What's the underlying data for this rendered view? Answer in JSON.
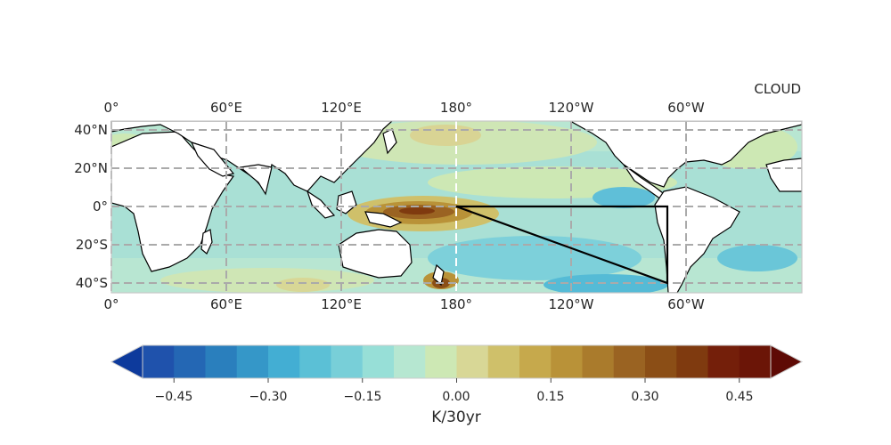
{
  "map": {
    "title": "CLOUD",
    "lon_labels_top": [
      "0°",
      "60°E",
      "120°E",
      "180°",
      "120°W",
      "60°W"
    ],
    "lon_labels_bottom": [
      "0°",
      "60°E",
      "120°E",
      "180°",
      "120°W",
      "60°W"
    ],
    "lat_labels": [
      "40°N",
      "20°N",
      "0°",
      "20°S",
      "40°S"
    ],
    "extent": {
      "lon": [
        0,
        360
      ],
      "lat": [
        -45,
        45
      ]
    },
    "gridlines": {
      "lons": [
        0,
        60,
        120,
        180,
        240,
        300
      ],
      "lats": [
        40,
        20,
        0,
        -20,
        -40
      ]
    },
    "region_outline": {
      "type": "triangle",
      "vertices_lonlat": [
        [
          180,
          0
        ],
        [
          290,
          0
        ],
        [
          290,
          -40
        ]
      ]
    }
  },
  "colorbar": {
    "label": "K/30yr",
    "ticks": [
      "−0.45",
      "−0.30",
      "−0.15",
      "0.00",
      "0.15",
      "0.30",
      "0.45"
    ],
    "tick_values": [
      -0.45,
      -0.3,
      -0.15,
      0.0,
      0.15,
      0.3,
      0.45
    ],
    "range": [
      -0.5,
      0.5
    ],
    "extend": "both",
    "colors": [
      "#0d3a9c",
      "#1f52ac",
      "#2467b4",
      "#2a7fbd",
      "#3597c8",
      "#43aed3",
      "#5bc0d6",
      "#78cfd8",
      "#97dfd7",
      "#b6e7d1",
      "#cde8b4",
      "#d8d796",
      "#cfc06a",
      "#c6a94c",
      "#b99238",
      "#aa7b2c",
      "#9a6322",
      "#8b4e16",
      "#7f3a0f",
      "#741f0a",
      "#6b1507",
      "#5e0a05"
    ]
  }
}
